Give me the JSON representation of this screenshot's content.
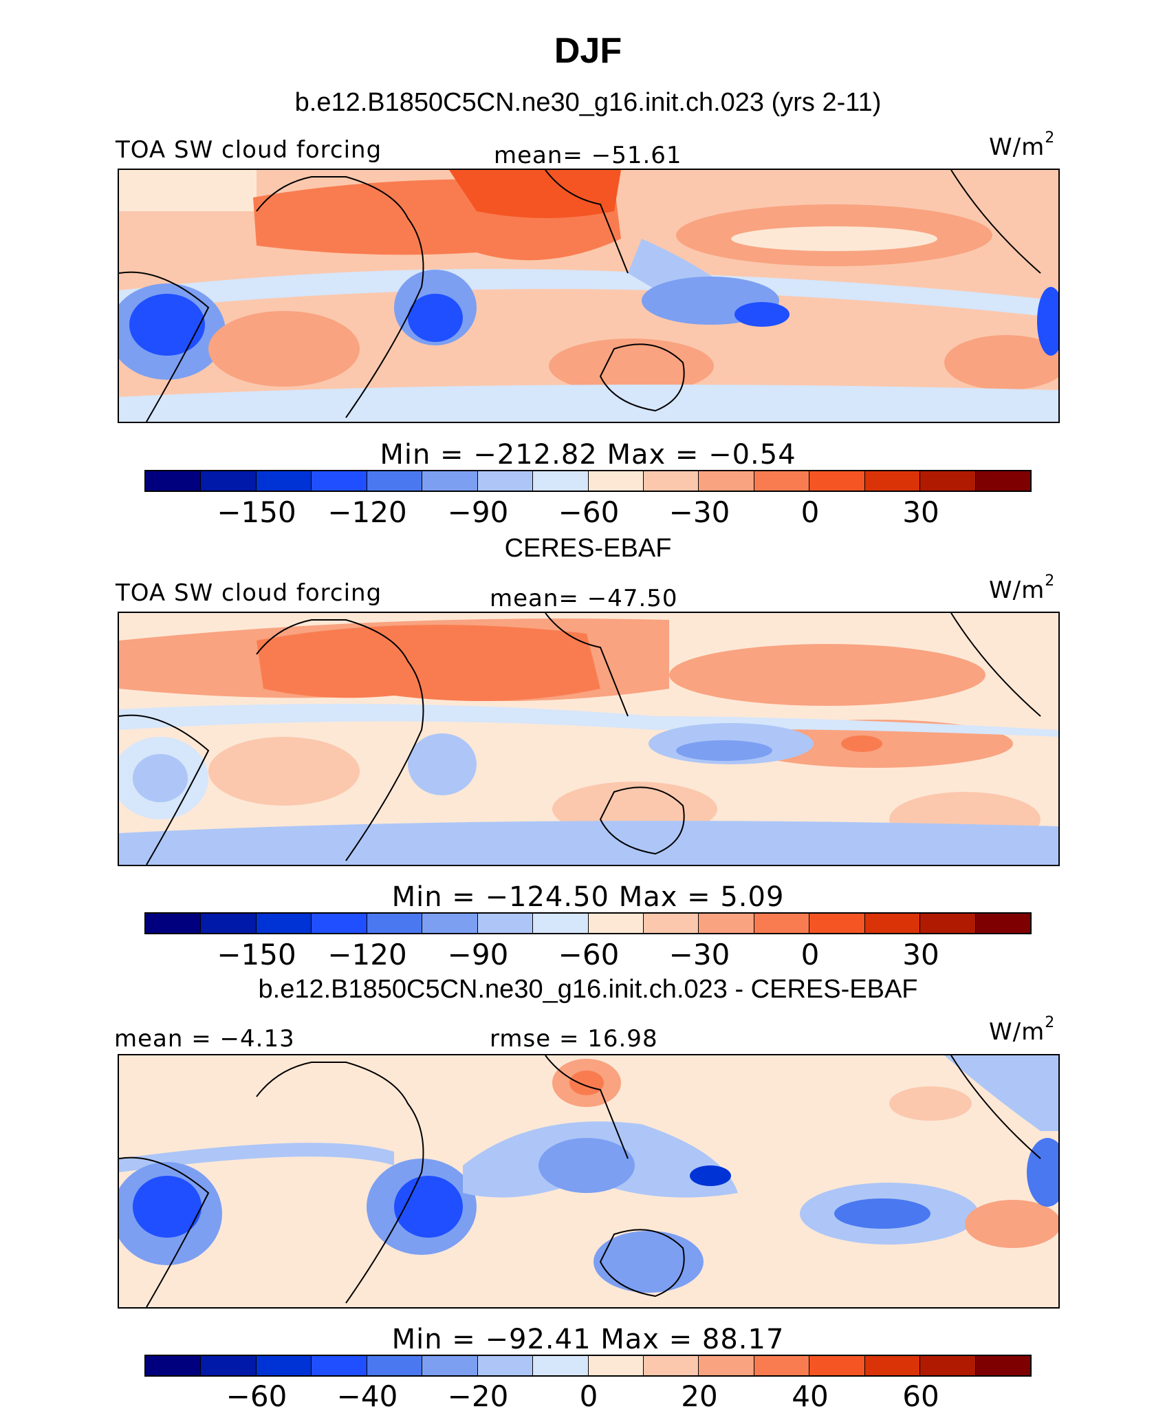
{
  "title": "DJF",
  "panels": [
    {
      "subtitle": "b.e12.B1850C5CN.ne30_g16.init.ch.023 (yrs 2-11)",
      "left_label": "TOA SW cloud forcing",
      "center_label": "mean= −51.61",
      "unit": "W/m",
      "unit_sup": "2",
      "minmax": "Min = −212.82 Max = −0.54",
      "ticks": [
        "−150",
        "−120",
        "−90",
        "−60",
        "−30",
        "0",
        "30"
      ]
    },
    {
      "subtitle": "CERES-EBAF",
      "left_label": "TOA SW cloud forcing",
      "center_label": "mean= −47.50",
      "unit": "W/m",
      "unit_sup": "2",
      "minmax": "Min = −124.50 Max = 5.09",
      "ticks": [
        "−150",
        "−120",
        "−90",
        "−60",
        "−30",
        "0",
        "30"
      ]
    },
    {
      "subtitle": "b.e12.B1850C5CN.ne30_g16.init.ch.023 - CERES-EBAF",
      "left_label": "mean = −4.13",
      "center_label": "rmse = 16.98",
      "unit": "W/m",
      "unit_sup": "2",
      "minmax": "Min = −92.41 Max = 88.17",
      "ticks": [
        "−60",
        "−40",
        "−20",
        "0",
        "20",
        "40",
        "60"
      ]
    }
  ],
  "colorbar_colors": [
    "#00007f",
    "#0019a8",
    "#0033d6",
    "#1f4fff",
    "#4a78f0",
    "#7c9ff2",
    "#adc6f7",
    "#d6e6fb",
    "#fde8d6",
    "#fbc8ad",
    "#f9a380",
    "#f97c50",
    "#f45523",
    "#db3308",
    "#b01a00",
    "#7f0000"
  ]
}
